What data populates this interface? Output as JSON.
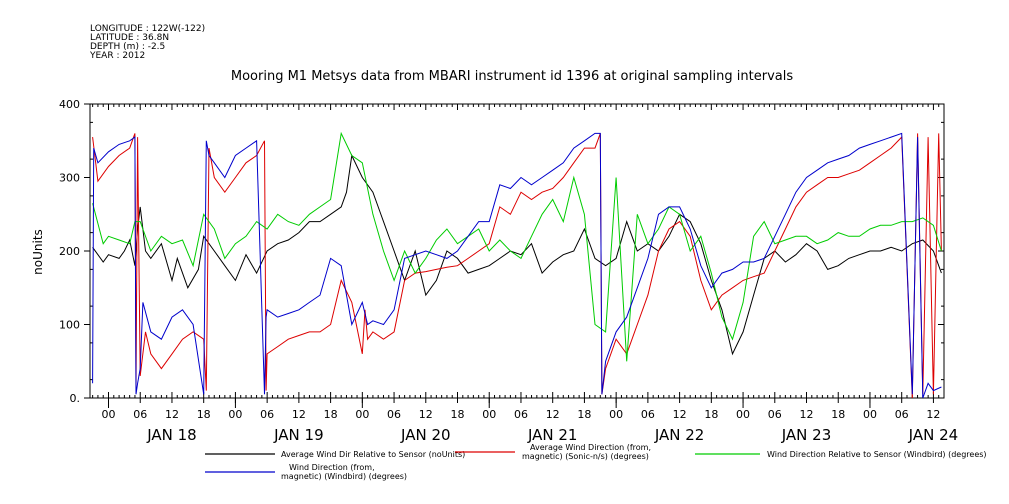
{
  "meta_lines": [
    "LONGITUDE : 122W(-122)",
    "LATITUDE : 36.8N",
    "DEPTH (m) : -2.5",
    "YEAR : 2012"
  ],
  "chart_data": {
    "type": "line",
    "title": "Mooring M1 Metsys data from MBARI instrument id 1396 at original sampling intervals",
    "ylabel": "noUnits",
    "xlabel": "",
    "ylim": [
      0,
      400
    ],
    "yticks": [
      "0.",
      "100",
      "200",
      "300",
      "400"
    ],
    "xlim_hours": [
      -3.5,
      158
    ],
    "hour_ticks": [
      "00",
      "06",
      "12",
      "18",
      "00",
      "06",
      "12",
      "18",
      "00",
      "06",
      "12",
      "18",
      "00",
      "06",
      "12",
      "18",
      "00",
      "06",
      "12",
      "18",
      "00",
      "06",
      "12",
      "18",
      "00",
      "06",
      "12"
    ],
    "day_labels": [
      "JAN 18",
      "JAN 19",
      "JAN 20",
      "JAN 21",
      "JAN 22",
      "JAN 23",
      "JAN 24"
    ],
    "grid": false,
    "legend_position": "bottom",
    "colors": {
      "black": "#000000",
      "red": "#dd0000",
      "green": "#00cc00",
      "blue": "#0000cc"
    },
    "series": [
      {
        "name": "Average Wind Dir Relative to Sensor (noUnits)",
        "color": "#000000",
        "x": [
          -3,
          -1,
          0,
          2,
          3,
          4,
          5,
          5.5,
          6,
          7,
          8,
          10,
          12,
          13,
          15,
          17,
          18,
          20,
          22,
          24,
          26,
          28,
          30,
          32,
          34,
          36,
          38,
          40,
          42,
          44,
          45,
          46,
          48,
          50,
          52,
          54,
          56,
          58,
          60,
          62,
          64,
          66,
          68,
          70,
          72,
          74,
          76,
          78,
          80,
          82,
          84,
          86,
          88,
          90,
          92,
          94,
          96,
          98,
          100,
          102,
          104,
          106,
          108,
          110,
          112,
          114,
          116,
          118,
          120,
          122,
          124,
          126,
          128,
          130,
          132,
          134,
          136,
          138,
          140,
          142,
          144,
          146,
          148,
          150,
          152,
          154,
          156,
          157.5
        ],
        "y": [
          205,
          185,
          195,
          190,
          200,
          215,
          180,
          230,
          260,
          200,
          190,
          210,
          160,
          190,
          150,
          175,
          220,
          200,
          180,
          160,
          195,
          170,
          200,
          210,
          215,
          225,
          240,
          240,
          250,
          260,
          280,
          330,
          300,
          280,
          240,
          200,
          160,
          200,
          140,
          160,
          200,
          190,
          170,
          175,
          180,
          190,
          200,
          195,
          210,
          170,
          185,
          195,
          200,
          230,
          190,
          180,
          190,
          240,
          200,
          210,
          200,
          220,
          250,
          240,
          210,
          160,
          120,
          60,
          90,
          140,
          190,
          200,
          185,
          195,
          210,
          200,
          175,
          180,
          190,
          195,
          200,
          200,
          205,
          200,
          210,
          215,
          200,
          170
        ]
      },
      {
        "name": "Average Wind Direction (from, magnetic) (Sonic-n/s) (degrees)",
        "color": "#dd0000",
        "x": [
          -3,
          -2,
          0,
          2,
          4,
          5,
          5.2,
          5.5,
          6,
          7,
          8,
          10,
          12,
          14,
          16,
          18,
          18.5,
          19,
          20,
          22,
          24,
          26,
          28,
          29.5,
          29.8,
          30,
          32,
          34,
          36,
          38,
          40,
          42,
          44,
          46,
          48,
          48.5,
          49,
          50,
          52,
          54,
          56,
          58,
          60,
          62,
          64,
          66,
          68,
          70,
          72,
          74,
          76,
          78,
          80,
          82,
          84,
          86,
          88,
          90,
          92,
          93,
          93.3,
          94,
          96,
          98,
          100,
          102,
          104,
          106,
          108,
          110,
          112,
          114,
          116,
          118,
          120,
          122,
          124,
          126,
          128,
          130,
          132,
          134,
          136,
          138,
          140,
          142,
          144,
          146,
          148,
          150,
          152,
          153,
          154,
          155,
          156,
          157,
          157.5
        ],
        "y": [
          355,
          295,
          315,
          330,
          340,
          360,
          10,
          355,
          30,
          90,
          60,
          40,
          60,
          80,
          90,
          80,
          10,
          340,
          300,
          280,
          300,
          320,
          330,
          350,
          10,
          60,
          70,
          80,
          85,
          90,
          90,
          100,
          160,
          130,
          60,
          120,
          80,
          90,
          80,
          90,
          160,
          170,
          172,
          175,
          178,
          180,
          190,
          200,
          210,
          260,
          250,
          280,
          270,
          280,
          285,
          300,
          320,
          340,
          340,
          360,
          5,
          40,
          80,
          60,
          100,
          140,
          200,
          230,
          240,
          220,
          160,
          120,
          140,
          150,
          160,
          165,
          170,
          200,
          230,
          260,
          280,
          290,
          300,
          300,
          305,
          310,
          320,
          330,
          340,
          355,
          0,
          360,
          5,
          355,
          5,
          360,
          200
        ],
        "segments": "sampled"
      },
      {
        "name": "Wind Direction Relative to Sensor (Windbird) (degrees)",
        "color": "#00cc00",
        "x": [
          -3,
          -1,
          0,
          2,
          4,
          5,
          6,
          8,
          10,
          12,
          14,
          16,
          18,
          20,
          22,
          24,
          26,
          28,
          30,
          32,
          34,
          36,
          38,
          40,
          42,
          44,
          46,
          48,
          50,
          52,
          54,
          56,
          58,
          60,
          62,
          64,
          66,
          68,
          70,
          72,
          74,
          76,
          78,
          80,
          82,
          84,
          86,
          88,
          90,
          92,
          94,
          96,
          98,
          100,
          102,
          104,
          106,
          108,
          110,
          112,
          114,
          116,
          118,
          120,
          122,
          124,
          126,
          128,
          130,
          132,
          134,
          136,
          138,
          140,
          142,
          144,
          146,
          148,
          150,
          152,
          154,
          156,
          157.5
        ],
        "y": [
          265,
          210,
          220,
          215,
          210,
          240,
          240,
          200,
          220,
          210,
          215,
          180,
          250,
          230,
          190,
          210,
          220,
          240,
          230,
          250,
          240,
          235,
          250,
          260,
          270,
          360,
          330,
          320,
          250,
          200,
          160,
          200,
          170,
          190,
          215,
          230,
          210,
          220,
          230,
          200,
          215,
          200,
          190,
          220,
          250,
          270,
          240,
          300,
          250,
          100,
          90,
          300,
          50,
          250,
          210,
          230,
          260,
          250,
          200,
          220,
          170,
          110,
          80,
          130,
          220,
          240,
          210,
          215,
          220,
          220,
          210,
          215,
          225,
          220,
          220,
          230,
          235,
          235,
          240,
          240,
          245,
          235,
          200
        ]
      },
      {
        "name": "Wind Direction (from, magnetic) (Windbird) (degrees)",
        "color": "#0000cc",
        "x": [
          -3,
          -2.8,
          -2,
          0,
          2,
          4,
          5,
          5.2,
          5.5,
          6,
          6.5,
          8,
          10,
          12,
          14,
          16,
          18,
          18.5,
          19,
          20,
          22,
          24,
          26,
          28,
          29.5,
          29.8,
          30,
          32,
          34,
          36,
          38,
          40,
          42,
          44,
          46,
          48,
          49,
          50,
          52,
          54,
          56,
          58,
          60,
          62,
          64,
          66,
          68,
          70,
          72,
          74,
          76,
          78,
          80,
          82,
          84,
          86,
          88,
          90,
          92,
          93,
          93.3,
          94,
          96,
          98,
          100,
          102,
          104,
          106,
          108,
          110,
          112,
          114,
          116,
          118,
          120,
          122,
          124,
          126,
          128,
          130,
          132,
          134,
          136,
          138,
          140,
          142,
          144,
          146,
          148,
          150,
          152,
          153,
          154,
          155,
          156,
          157.5
        ],
        "y": [
          20,
          340,
          320,
          335,
          345,
          350,
          355,
          5,
          20,
          40,
          130,
          90,
          80,
          110,
          120,
          100,
          5,
          350,
          330,
          320,
          300,
          330,
          340,
          350,
          5,
          110,
          120,
          110,
          115,
          120,
          130,
          140,
          190,
          180,
          100,
          130,
          100,
          105,
          100,
          120,
          190,
          195,
          200,
          195,
          190,
          200,
          220,
          240,
          240,
          290,
          285,
          300,
          290,
          300,
          310,
          320,
          340,
          350,
          360,
          360,
          5,
          50,
          90,
          110,
          150,
          190,
          250,
          260,
          260,
          230,
          180,
          150,
          170,
          175,
          185,
          185,
          190,
          220,
          250,
          280,
          300,
          310,
          320,
          325,
          330,
          340,
          345,
          350,
          355,
          360,
          5,
          355,
          0,
          20,
          10,
          15
        ]
      }
    ]
  },
  "legend": [
    {
      "label_lines": [
        "Average Wind Dir Relative to Sensor (noUnits)"
      ],
      "color": "#000000"
    },
    {
      "label_lines": [
        "Average Wind Direction (from,",
        "magnetic) (Sonic-n/s) (degrees)"
      ],
      "color": "#dd0000"
    },
    {
      "label_lines": [
        "Wind Direction Relative to Sensor (Windbird) (degrees)"
      ],
      "color": "#00cc00"
    },
    {
      "label_lines": [
        "Wind Direction (from,",
        "magnetic) (Windbird) (degrees)"
      ],
      "color": "#0000cc"
    }
  ]
}
